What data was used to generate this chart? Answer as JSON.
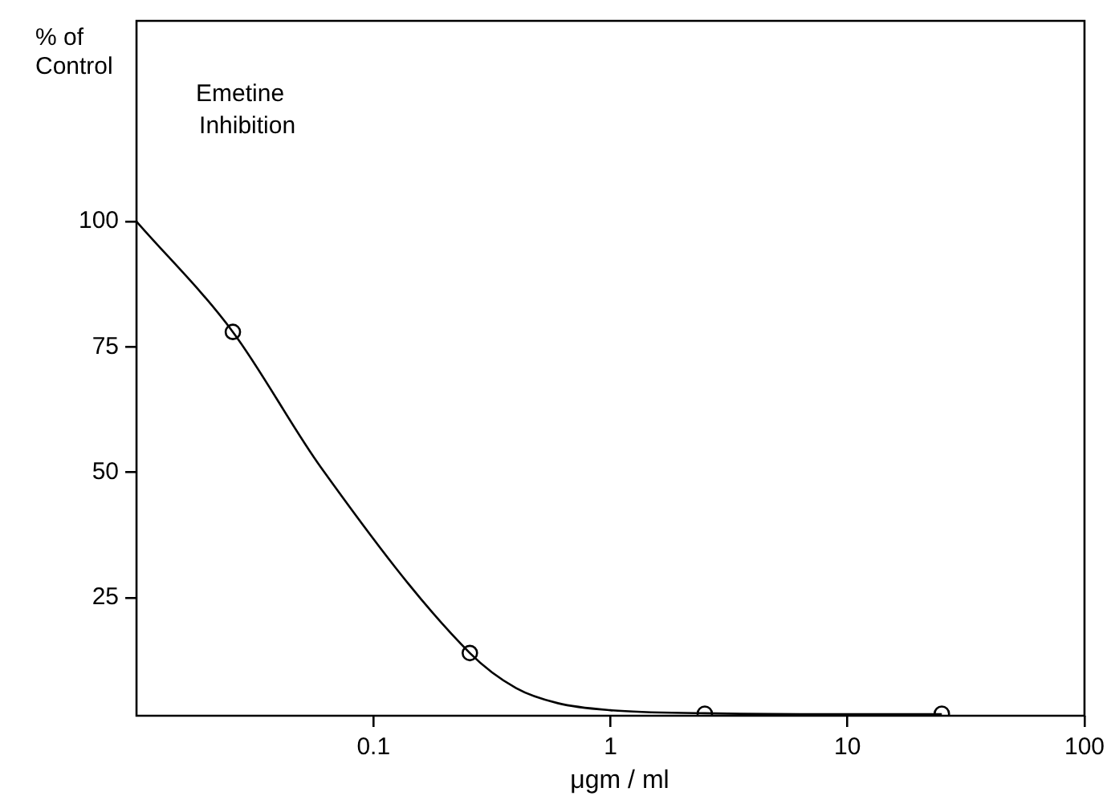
{
  "chart_data": {
    "type": "scatter",
    "xlabel": "μgm / ml",
    "ylabel": "% of Control",
    "annotations": [
      "Emetine Inhibition"
    ],
    "log": "x",
    "xlim": [
      0.01,
      100
    ],
    "xticks": [
      {
        "value": 0.1,
        "label": "0.1"
      },
      1,
      10,
      100
    ],
    "ylim": [
      1.5,
      140
    ],
    "yticks": [
      25,
      50,
      75,
      100
    ],
    "grid": false,
    "legend": false,
    "series": [
      {
        "type": "line",
        "color": "#000000",
        "marker": "none",
        "x": [
          0.01,
          0.0255,
          0.06,
          0.255,
          0.4,
          0.6,
          1,
          2.5,
          10,
          25
        ],
        "values": [
          100,
          78,
          51,
          14,
          7,
          4,
          2.6,
          2,
          1.8,
          1.8
        ]
      },
      {
        "color": "#000000",
        "marker": "circle",
        "x": [
          0.0255,
          0.255,
          2.5,
          25
        ],
        "values": [
          78,
          14,
          1.9,
          1.9
        ]
      }
    ]
  }
}
